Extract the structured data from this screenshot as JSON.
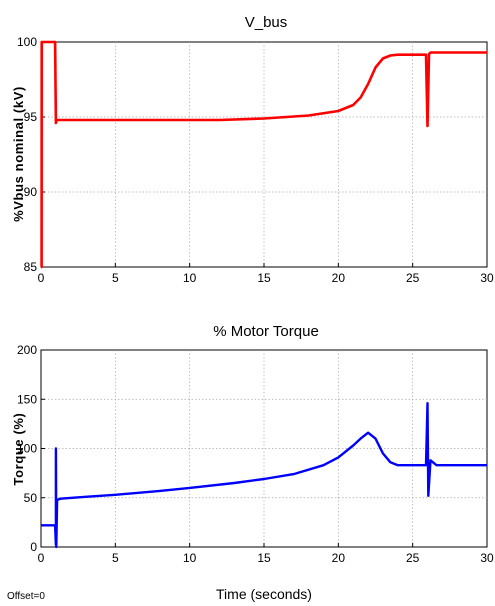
{
  "offset_label": "Offset=0",
  "chart_data": [
    {
      "type": "line",
      "title": "V_bus",
      "xlabel": "",
      "ylabel": "%Vbus nominal (kV)",
      "xlim": [
        0,
        30
      ],
      "ylim": [
        85,
        100
      ],
      "xticks": [
        "0",
        "5",
        "10",
        "15",
        "20",
        "25",
        "30"
      ],
      "yticks": [
        "85",
        "90",
        "95",
        "100"
      ],
      "grid": true,
      "series": [
        {
          "color": "#ff0000",
          "x": [
            0,
            0.04,
            0.05,
            0.95,
            1.0,
            1.05,
            3,
            8,
            12,
            15,
            18,
            20,
            21,
            21.5,
            22,
            22.5,
            23,
            23.5,
            24,
            25,
            25.9,
            26.0,
            26.1,
            26.2,
            27,
            28,
            29,
            30
          ],
          "y": [
            85,
            85,
            100,
            100,
            94.6,
            94.8,
            94.8,
            94.8,
            94.8,
            94.9,
            95.1,
            95.4,
            95.8,
            96.3,
            97.2,
            98.3,
            98.9,
            99.1,
            99.15,
            99.15,
            99.15,
            94.4,
            99.2,
            99.3,
            99.3,
            99.3,
            99.3,
            99.3
          ]
        }
      ]
    },
    {
      "type": "line",
      "title": "% Motor Torque",
      "xlabel": "Time (seconds)",
      "ylabel": "Torque (%)",
      "xlim": [
        0,
        30
      ],
      "ylim": [
        0,
        200
      ],
      "xticks": [
        "0",
        "5",
        "10",
        "15",
        "20",
        "25",
        "30"
      ],
      "yticks": [
        "0",
        "50",
        "100",
        "150",
        "200"
      ],
      "grid": true,
      "series": [
        {
          "color": "#0000ff",
          "x": [
            0,
            0.95,
            1.0,
            1.0,
            1.03,
            1.08,
            1.12,
            1.3,
            3,
            5,
            8,
            10,
            13,
            15,
            17,
            19,
            20,
            21,
            21.5,
            22,
            22.5,
            23,
            23.5,
            24,
            25,
            25.9,
            26.0,
            26.05,
            26.2,
            26.6,
            27,
            28,
            30
          ],
          "y": [
            22,
            22,
            2,
            100,
            0,
            48,
            48,
            49,
            51,
            53,
            57,
            60,
            65,
            69,
            74,
            83,
            91,
            103,
            110,
            116,
            110,
            95,
            86,
            83,
            83,
            83,
            146,
            52,
            88,
            83,
            83,
            83,
            83
          ]
        }
      ]
    }
  ]
}
